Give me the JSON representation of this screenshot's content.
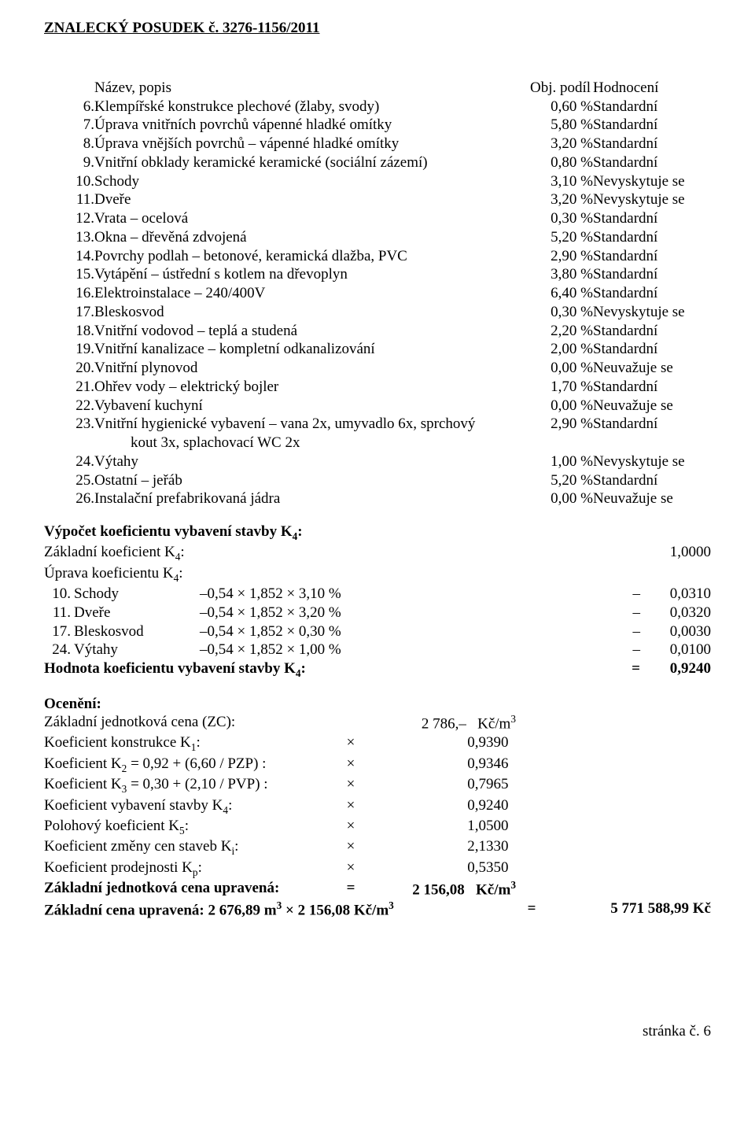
{
  "header": "ZNALECKÝ   POSUDEK č. 3276-1156/2011",
  "tableHead": {
    "c1": "Název, popis",
    "c2": "Obj. podíl",
    "c3": "Hodnocení"
  },
  "items": [
    {
      "n": "6.",
      "name": "Klempířské konstrukce plechové (žlaby, svody)",
      "pct": "0,60 %",
      "rating": "Standardní"
    },
    {
      "n": "7.",
      "name": "Úprava vnitřních povrchů vápenné hladké omítky",
      "pct": "5,80 %",
      "rating": "Standardní"
    },
    {
      "n": "8.",
      "name": "Úprava vnějších povrchů – vápenné hladké omítky",
      "pct": "3,20 %",
      "rating": "Standardní"
    },
    {
      "n": "9.",
      "name": "Vnitřní obklady keramické keramické (sociální zázemí)",
      "pct": "0,80 %",
      "rating": "Standardní"
    },
    {
      "n": "10.",
      "name": "Schody",
      "pct": "3,10 %",
      "rating": "Nevyskytuje se"
    },
    {
      "n": "11.",
      "name": "Dveře",
      "pct": "3,20 %",
      "rating": "Nevyskytuje se"
    },
    {
      "n": "12.",
      "name": "Vrata – ocelová",
      "pct": "0,30 %",
      "rating": "Standardní"
    },
    {
      "n": "13.",
      "name": "Okna – dřevěná zdvojená",
      "pct": "5,20 %",
      "rating": "Standardní"
    },
    {
      "n": "14.",
      "name": "Povrchy podlah – betonové, keramická dlažba, PVC",
      "pct": "2,90 %",
      "rating": "Standardní"
    },
    {
      "n": "15.",
      "name": "Vytápění – ústřední s kotlem na dřevoplyn",
      "pct": "3,80 %",
      "rating": "Standardní"
    },
    {
      "n": "16.",
      "name": "Elektroinstalace – 240/400V",
      "pct": "6,40 %",
      "rating": "Standardní"
    },
    {
      "n": "17.",
      "name": "Bleskosvod",
      "pct": "0,30 %",
      "rating": "Nevyskytuje se"
    },
    {
      "n": "18.",
      "name": "Vnitřní vodovod – teplá a studená",
      "pct": "2,20 %",
      "rating": "Standardní"
    },
    {
      "n": "19.",
      "name": "Vnitřní kanalizace – kompletní odkanalizování",
      "pct": "2,00 %",
      "rating": "Standardní"
    },
    {
      "n": "20.",
      "name": "Vnitřní plynovod",
      "pct": "0,00 %",
      "rating": "Neuvažuje se"
    },
    {
      "n": "21.",
      "name": "Ohřev vody – elektrický bojler",
      "pct": "1,70 %",
      "rating": "Standardní"
    },
    {
      "n": "22.",
      "name": "Vybavení kuchyní",
      "pct": "0,00 %",
      "rating": "Neuvažuje se"
    },
    {
      "n": "23.",
      "name": "Vnitřní hygienické vybavení – vana 2x, umyvadlo 6x, sprchový kout 3x, splachovací WC 2x",
      "pct": "2,90 %",
      "rating": "Standardní"
    },
    {
      "n": "24.",
      "name": "Výtahy",
      "pct": "1,00 %",
      "rating": "Nevyskytuje se"
    },
    {
      "n": "25.",
      "name": "Ostatní – jeřáb",
      "pct": "5,20 %",
      "rating": "Standardní"
    },
    {
      "n": "26.",
      "name": "Instalační prefabrikovaná jádra",
      "pct": "0,00 %",
      "rating": "Neuvažuje se"
    }
  ],
  "k4title": "Výpočet koeficientu vybavení stavby K",
  "k4sub": "4",
  "baseK4Label": "Základní koeficient K",
  "baseK4Value": "1,0000",
  "adjustLabel": "Úprava koeficientu K",
  "adjustRows": [
    {
      "n": "10.",
      "name": "Schody",
      "mid": "–0,54 × 1,852 × 3,10 %",
      "eq": "–",
      "val": "0,0310"
    },
    {
      "n": "11.",
      "name": "Dveře",
      "mid": "–0,54 × 1,852 × 3,20 %",
      "eq": "–",
      "val": "0,0320"
    },
    {
      "n": "17.",
      "name": "Bleskosvod",
      "mid": "–0,54 × 1,852 × 0,30 %",
      "eq": "–",
      "val": "0,0030"
    },
    {
      "n": "24.",
      "name": "Výtahy",
      "mid": "–0,54 × 1,852 × 1,00 %",
      "eq": "–",
      "val": "0,0100"
    }
  ],
  "k4resultLabel": "Hodnota koeficientu vybavení stavby K",
  "k4resultEq": "=",
  "k4resultVal": "0,9240",
  "ocenTitle": "Ocenění:",
  "ocenRows": [
    {
      "label_pre": "Základní jednotková cena (ZC):",
      "sub": "",
      "sign": "",
      "val": "2 786,–",
      "unit": "Kč/m",
      "sup": "3",
      "bold": false
    },
    {
      "label_pre": "Koeficient konstrukce K",
      "sub": "1",
      "label_post": ":",
      "sign": "×",
      "val": "0,9390",
      "unit": "",
      "sup": "",
      "bold": false
    },
    {
      "label_pre": "Koeficient K",
      "sub": "2",
      "label_post": " = 0,92 + (6,60 / PZP) :",
      "sign": "×",
      "val": "0,9346",
      "unit": "",
      "sup": "",
      "bold": false
    },
    {
      "label_pre": "Koeficient K",
      "sub": "3",
      "label_post": " = 0,30 + (2,10 / PVP) :",
      "sign": "×",
      "val": "0,7965",
      "unit": "",
      "sup": "",
      "bold": false
    },
    {
      "label_pre": "Koeficient vybavení stavby K",
      "sub": "4",
      "label_post": ":",
      "sign": "×",
      "val": "0,9240",
      "unit": "",
      "sup": "",
      "bold": false
    },
    {
      "label_pre": "Polohový koeficient K",
      "sub": "5",
      "label_post": ":",
      "sign": "×",
      "val": "1,0500",
      "unit": "",
      "sup": "",
      "bold": false
    },
    {
      "label_pre": "Koeficient změny cen staveb K",
      "sub": "i",
      "label_post": ":",
      "sign": "×",
      "val": "2,1330",
      "unit": "",
      "sup": "",
      "bold": false
    },
    {
      "label_pre": "Koeficient prodejnosti K",
      "sub": "p",
      "label_post": ":",
      "sign": "×",
      "val": "0,5350",
      "unit": "",
      "sup": "",
      "bold": false
    },
    {
      "label_pre": "Základní jednotková cena upravená:",
      "sub": "",
      "label_post": "",
      "sign": "=",
      "val": "2 156,08",
      "unit": "Kč/m",
      "sup": "3",
      "bold": true
    }
  ],
  "finalLine": {
    "pre": "Základní cena upravená: ",
    "a": "2 676,89 m",
    "sup1": "3",
    "mul": " × 2 156,08 Kč/m",
    "sup2": "3",
    "eq": "=",
    "val": "5 771 588,99 Kč"
  },
  "footer": "stránka č. 6"
}
